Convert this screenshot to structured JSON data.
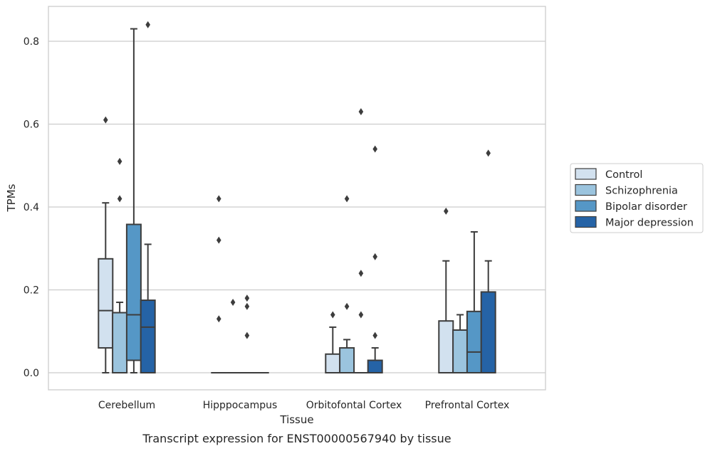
{
  "chart_data": {
    "type": "box",
    "caption": "Transcript expression for ENST00000567940 by tissue",
    "xlabel": "Tissue",
    "ylabel": "TPMs",
    "ylim": [
      -0.04,
      0.885
    ],
    "yticks": [
      "0.0",
      "0.2",
      "0.4",
      "0.6",
      "0.8"
    ],
    "grid": true,
    "legend_position": "right",
    "categories": [
      "Cerebellum",
      "Hipppocampus",
      "Orbitofontal Cortex",
      "Prefrontal Cortex"
    ],
    "series": [
      {
        "name": "Control",
        "color": "#d2e1ef",
        "boxes": [
          {
            "q1": 0.06,
            "median": 0.15,
            "q3": 0.275,
            "whisker_low": 0.0,
            "whisker_high": 0.41,
            "outliers": [
              0.61
            ]
          },
          {
            "q1": 0.0,
            "median": 0.0,
            "q3": 0.0,
            "whisker_low": 0.0,
            "whisker_high": 0.0,
            "outliers": [
              0.13,
              0.32,
              0.42
            ]
          },
          {
            "q1": 0.0,
            "median": 0.0,
            "q3": 0.045,
            "whisker_low": 0.0,
            "whisker_high": 0.11,
            "outliers": [
              0.14
            ]
          },
          {
            "q1": 0.0,
            "median": 0.0,
            "q3": 0.125,
            "whisker_low": 0.0,
            "whisker_high": 0.27,
            "outliers": [
              0.39
            ]
          }
        ]
      },
      {
        "name": "Schizophrenia",
        "color": "#9bc4de",
        "boxes": [
          {
            "q1": 0.0,
            "median": 0.145,
            "q3": 0.145,
            "whisker_low": 0.0,
            "whisker_high": 0.17,
            "outliers": [
              0.42,
              0.51
            ]
          },
          {
            "q1": 0.0,
            "median": 0.0,
            "q3": 0.0,
            "whisker_low": 0.0,
            "whisker_high": 0.0,
            "outliers": [
              0.17
            ]
          },
          {
            "q1": 0.0,
            "median": 0.0,
            "q3": 0.06,
            "whisker_low": 0.0,
            "whisker_high": 0.08,
            "outliers": [
              0.16,
              0.42
            ]
          },
          {
            "q1": 0.0,
            "median": 0.0,
            "q3": 0.103,
            "whisker_low": 0.0,
            "whisker_high": 0.14,
            "outliers": []
          }
        ]
      },
      {
        "name": "Bipolar disorder",
        "color": "#5597c6",
        "boxes": [
          {
            "q1": 0.03,
            "median": 0.14,
            "q3": 0.358,
            "whisker_low": 0.0,
            "whisker_high": 0.83,
            "outliers": []
          },
          {
            "q1": 0.0,
            "median": 0.0,
            "q3": 0.0,
            "whisker_low": 0.0,
            "whisker_high": 0.0,
            "outliers": [
              0.09,
              0.16,
              0.18
            ]
          },
          {
            "q1": 0.0,
            "median": 0.0,
            "q3": 0.0,
            "whisker_low": 0.0,
            "whisker_high": 0.0,
            "outliers": [
              0.14,
              0.24,
              0.63
            ]
          },
          {
            "q1": 0.0,
            "median": 0.05,
            "q3": 0.148,
            "whisker_low": 0.0,
            "whisker_high": 0.34,
            "outliers": []
          }
        ]
      },
      {
        "name": "Major depression",
        "color": "#2563a6",
        "boxes": [
          {
            "q1": 0.0,
            "median": 0.11,
            "q3": 0.175,
            "whisker_low": 0.0,
            "whisker_high": 0.31,
            "outliers": [
              0.84
            ]
          },
          {
            "q1": 0.0,
            "median": 0.0,
            "q3": 0.0,
            "whisker_low": 0.0,
            "whisker_high": 0.0,
            "outliers": []
          },
          {
            "q1": 0.0,
            "median": 0.0,
            "q3": 0.03,
            "whisker_low": 0.0,
            "whisker_high": 0.06,
            "outliers": [
              0.09,
              0.28,
              0.54
            ]
          },
          {
            "q1": 0.0,
            "median": 0.0,
            "q3": 0.195,
            "whisker_low": 0.0,
            "whisker_high": 0.27,
            "outliers": [
              0.53
            ]
          }
        ]
      }
    ]
  }
}
